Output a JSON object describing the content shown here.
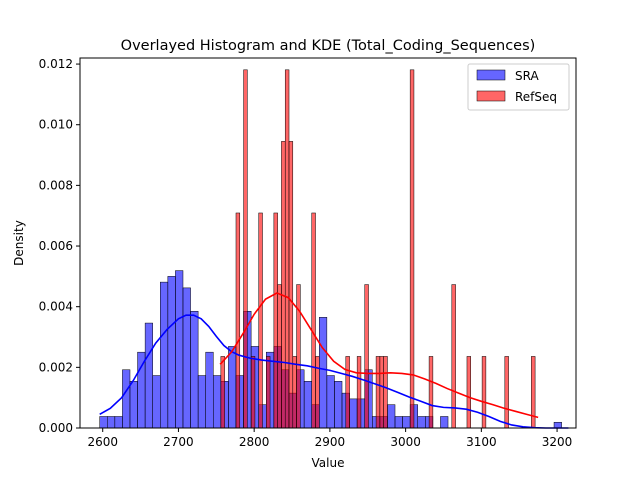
{
  "chart_data": {
    "type": "bar",
    "title": "Overlayed Histogram and KDE (Total_Coding_Sequences)",
    "xlabel": "Value",
    "ylabel": "Density",
    "xlim": [
      2570,
      3225
    ],
    "ylim": [
      0,
      0.0122
    ],
    "xticks": [
      2600,
      2700,
      2800,
      2900,
      3000,
      3100,
      3200
    ],
    "yticks": [
      0.0,
      0.002,
      0.004,
      0.006,
      0.008,
      0.01,
      0.012
    ],
    "ytick_labels": [
      "0.000",
      "0.002",
      "0.004",
      "0.006",
      "0.008",
      "0.010",
      "0.012"
    ],
    "grid": false,
    "legend_position": "top-right",
    "series": [
      {
        "name": "SRA",
        "kind": "histogram",
        "color": "#0000ff",
        "bin_width": 10,
        "bins_start": [
          2596,
          2606,
          2616,
          2626,
          2636,
          2646,
          2656,
          2666,
          2676,
          2686,
          2696,
          2706,
          2716,
          2726,
          2736,
          2746,
          2756,
          2766,
          2776,
          2786,
          2796,
          2806,
          2816,
          2826,
          2836,
          2846,
          2856,
          2866,
          2876,
          2886,
          2896,
          2906,
          2916,
          2926,
          2936,
          2946,
          2956,
          2966,
          2976,
          2986,
          2996,
          3006,
          3016,
          3026,
          3036,
          3046,
          3056,
          3066,
          3076,
          3086,
          3096,
          3106,
          3116,
          3126,
          3136,
          3146,
          3156,
          3166,
          3176,
          3186,
          3196,
          3206
        ],
        "values": [
          0.00038,
          0.00038,
          0.00038,
          0.00192,
          0.00154,
          0.0025,
          0.00346,
          0.00173,
          0.00481,
          0.005,
          0.00519,
          0.00462,
          0.00385,
          0.00173,
          0.0025,
          0.00173,
          0.00154,
          0.00269,
          0.00173,
          0.00385,
          0.00269,
          0.00077,
          0.0025,
          0.00269,
          0.00192,
          0.00115,
          0.00192,
          0.00154,
          0.00077,
          0.00365,
          0.00173,
          0.00154,
          0.00115,
          0.00096,
          0.00096,
          0.00192,
          0.00038,
          0.00038,
          0.00077,
          0.00038,
          0.00038,
          0.00077,
          0.00038,
          0.00038,
          0.0,
          0.00038,
          0.0,
          0.0,
          0.0,
          0.0,
          0.0,
          0.0,
          0.0,
          0.0,
          0.0,
          0.0,
          0.0,
          0.0,
          0.0,
          0.0,
          0.00019,
          0.0
        ]
      },
      {
        "name": "RefSeq",
        "kind": "histogram",
        "color": "#ff0000",
        "bin_width": 5,
        "bins_start": [
          2756,
          2776,
          2786,
          2796,
          2806,
          2816,
          2826,
          2831,
          2836,
          2841,
          2846,
          2851,
          2856,
          2876,
          2881,
          2921,
          2936,
          2946,
          2961,
          2966,
          2971,
          3006,
          3031,
          3061,
          3081,
          3101,
          3131,
          3166
        ],
        "values": [
          0.00236,
          0.00709,
          0.01181,
          0.00236,
          0.00709,
          0.00236,
          0.00709,
          0.00473,
          0.00945,
          0.01181,
          0.00945,
          0.00236,
          0.00473,
          0.00709,
          0.00236,
          0.00236,
          0.00236,
          0.00473,
          0.00236,
          0.00236,
          0.00236,
          0.01181,
          0.00236,
          0.00473,
          0.00236,
          0.00236,
          0.00236,
          0.00236
        ]
      },
      {
        "name": "SRA KDE",
        "kind": "kde",
        "color": "#0000ff",
        "x": [
          2596,
          2610,
          2625,
          2640,
          2655,
          2670,
          2685,
          2700,
          2710,
          2720,
          2730,
          2740,
          2750,
          2760,
          2770,
          2780,
          2795,
          2810,
          2825,
          2840,
          2855,
          2870,
          2885,
          2900,
          2915,
          2930,
          2945,
          2960,
          2975,
          2990,
          3005,
          3020,
          3035,
          3050,
          3065,
          3080,
          3095,
          3110,
          3125,
          3140,
          3155,
          3170,
          3185,
          3200,
          3215
        ],
        "values": [
          0.00045,
          0.00065,
          0.001,
          0.00155,
          0.0022,
          0.0028,
          0.00325,
          0.0036,
          0.00372,
          0.00372,
          0.0036,
          0.00335,
          0.00302,
          0.00272,
          0.00252,
          0.0024,
          0.0023,
          0.00224,
          0.0022,
          0.00216,
          0.0021,
          0.00205,
          0.00197,
          0.0019,
          0.0018,
          0.0017,
          0.00158,
          0.00145,
          0.00132,
          0.00117,
          0.00102,
          0.00088,
          0.00074,
          0.00068,
          0.00066,
          0.00062,
          0.00052,
          0.00038,
          0.00022,
          0.0001,
          4e-05,
          1e-05,
          0.0,
          0.0,
          0.0
        ]
      },
      {
        "name": "RefSeq KDE",
        "kind": "kde",
        "color": "#ff0000",
        "x": [
          2755,
          2770,
          2785,
          2800,
          2815,
          2830,
          2845,
          2860,
          2875,
          2890,
          2905,
          2920,
          2935,
          2950,
          2965,
          2980,
          2995,
          3010,
          3025,
          3040,
          3055,
          3070,
          3085,
          3100,
          3115,
          3130,
          3145,
          3160,
          3175
        ],
        "values": [
          0.0021,
          0.0025,
          0.0031,
          0.00375,
          0.00425,
          0.00445,
          0.0043,
          0.00385,
          0.00325,
          0.00265,
          0.0022,
          0.00193,
          0.00182,
          0.0018,
          0.0018,
          0.00182,
          0.0018,
          0.00175,
          0.00162,
          0.00147,
          0.0013,
          0.00115,
          0.001,
          0.00088,
          0.00077,
          0.00065,
          0.00055,
          0.00045,
          0.00035
        ]
      }
    ],
    "legend": [
      {
        "label": "SRA",
        "color": "#0000ff"
      },
      {
        "label": "RefSeq",
        "color": "#ff0000"
      }
    ]
  }
}
